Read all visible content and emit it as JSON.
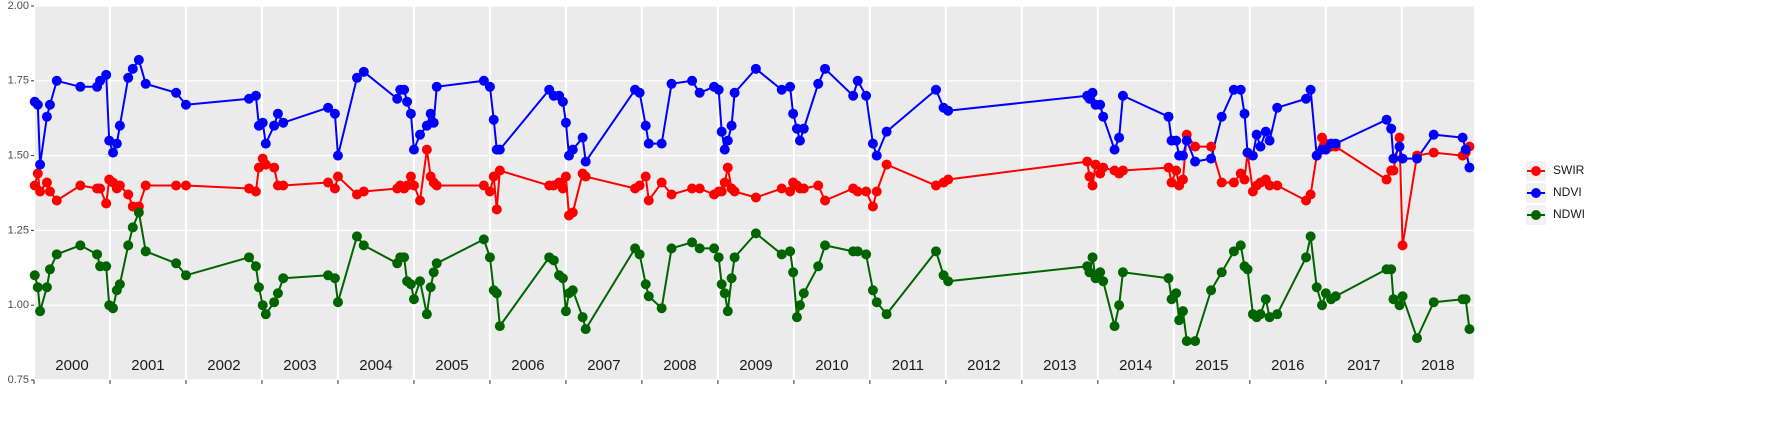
{
  "chart_data": {
    "type": "line",
    "x": [
      2000.01,
      2000.05,
      2000.08,
      2000.17,
      2000.21,
      2000.3,
      2000.61,
      2000.83,
      2000.87,
      2000.95,
      2000.99,
      2001.04,
      2001.09,
      2001.13,
      2001.24,
      2001.3,
      2001.38,
      2001.47,
      2001.87,
      2002.0,
      2002.83,
      2002.92,
      2002.96,
      2003.01,
      2003.05,
      2003.16,
      2003.21,
      2003.28,
      2003.87,
      2003.96,
      2004.0,
      2004.25,
      2004.34,
      2004.78,
      2004.82,
      2004.87,
      2004.91,
      2004.96,
      2005.0,
      2005.08,
      2005.17,
      2005.22,
      2005.26,
      2005.3,
      2005.92,
      2006.0,
      2006.05,
      2006.09,
      2006.13,
      2006.78,
      2006.84,
      2006.91,
      2006.96,
      2007.0,
      2007.04,
      2007.09,
      2007.22,
      2007.26,
      2007.91,
      2007.97,
      2008.05,
      2008.09,
      2008.26,
      2008.39,
      2008.66,
      2008.76,
      2008.95,
      2009.01,
      2009.05,
      2009.09,
      2009.13,
      2009.18,
      2009.22,
      2009.5,
      2009.84,
      2009.95,
      2009.99,
      2010.04,
      2010.08,
      2010.13,
      2010.32,
      2010.41,
      2010.78,
      2010.84,
      2010.95,
      2011.04,
      2011.09,
      2011.22,
      2011.87,
      2011.97,
      2012.03,
      2013.86,
      2013.89,
      2013.93,
      2013.97,
      2014.03,
      2014.07,
      2014.22,
      2014.28,
      2014.33,
      2014.93,
      2014.97,
      2015.03,
      2015.07,
      2015.12,
      2015.17,
      2015.28,
      2015.49,
      2015.63,
      2015.79,
      2015.88,
      2015.93,
      2015.97,
      2016.04,
      2016.09,
      2016.14,
      2016.21,
      2016.26,
      2016.36,
      2016.74,
      2016.8,
      2016.88,
      2016.95,
      2017.0,
      2017.07,
      2017.13,
      2017.8,
      2017.86,
      2017.89,
      2017.97,
      2018.01,
      2018.2,
      2018.42,
      2018.8,
      2018.84,
      2018.89
    ],
    "series": [
      {
        "name": "SWIR",
        "color": "#ff0000",
        "values": [
          1.4,
          1.44,
          1.38,
          1.41,
          1.38,
          1.35,
          1.4,
          1.39,
          1.39,
          1.34,
          1.42,
          1.41,
          1.39,
          1.4,
          1.37,
          1.33,
          1.33,
          1.4,
          1.4,
          1.4,
          1.39,
          1.38,
          1.46,
          1.49,
          1.47,
          1.46,
          1.4,
          1.4,
          1.41,
          1.39,
          1.43,
          1.37,
          1.38,
          1.39,
          1.4,
          1.39,
          1.4,
          1.43,
          1.4,
          1.35,
          1.52,
          1.43,
          1.41,
          1.4,
          1.4,
          1.38,
          1.43,
          1.32,
          1.45,
          1.4,
          1.4,
          1.41,
          1.39,
          1.43,
          1.3,
          1.31,
          1.44,
          1.43,
          1.39,
          1.4,
          1.43,
          1.35,
          1.41,
          1.37,
          1.39,
          1.39,
          1.37,
          1.38,
          1.38,
          1.41,
          1.46,
          1.39,
          1.38,
          1.36,
          1.39,
          1.38,
          1.41,
          1.4,
          1.39,
          1.39,
          1.4,
          1.35,
          1.39,
          1.38,
          1.38,
          1.33,
          1.38,
          1.47,
          1.4,
          1.41,
          1.42,
          1.48,
          1.43,
          1.4,
          1.47,
          1.44,
          1.46,
          1.45,
          1.44,
          1.45,
          1.46,
          1.41,
          1.45,
          1.4,
          1.42,
          1.57,
          1.53,
          1.53,
          1.41,
          1.41,
          1.44,
          1.42,
          1.51,
          1.38,
          1.4,
          1.41,
          1.42,
          1.4,
          1.4,
          1.35,
          1.37,
          1.5,
          1.56,
          1.54,
          1.53,
          1.53,
          1.42,
          1.45,
          1.45,
          1.56,
          1.2,
          1.5,
          1.51,
          1.5,
          1.51,
          1.53
        ]
      },
      {
        "name": "NDVI",
        "color": "#0000ff",
        "values": [
          1.68,
          1.67,
          1.47,
          1.63,
          1.67,
          1.75,
          1.73,
          1.73,
          1.75,
          1.77,
          1.55,
          1.51,
          1.54,
          1.6,
          1.76,
          1.79,
          1.82,
          1.74,
          1.71,
          1.67,
          1.69,
          1.7,
          1.6,
          1.61,
          1.54,
          1.6,
          1.64,
          1.61,
          1.66,
          1.64,
          1.5,
          1.76,
          1.78,
          1.69,
          1.72,
          1.72,
          1.68,
          1.64,
          1.52,
          1.57,
          1.6,
          1.64,
          1.61,
          1.73,
          1.75,
          1.73,
          1.62,
          1.52,
          1.52,
          1.72,
          1.7,
          1.7,
          1.68,
          1.61,
          1.5,
          1.52,
          1.56,
          1.48,
          1.72,
          1.71,
          1.6,
          1.54,
          1.54,
          1.74,
          1.75,
          1.71,
          1.73,
          1.72,
          1.58,
          1.52,
          1.55,
          1.6,
          1.71,
          1.79,
          1.72,
          1.73,
          1.64,
          1.59,
          1.55,
          1.59,
          1.74,
          1.79,
          1.7,
          1.75,
          1.7,
          1.54,
          1.5,
          1.58,
          1.72,
          1.66,
          1.65,
          1.7,
          1.69,
          1.71,
          1.67,
          1.67,
          1.63,
          1.52,
          1.56,
          1.7,
          1.63,
          1.55,
          1.55,
          1.5,
          1.5,
          1.55,
          1.48,
          1.49,
          1.63,
          1.72,
          1.72,
          1.64,
          1.51,
          1.5,
          1.57,
          1.53,
          1.58,
          1.55,
          1.66,
          1.69,
          1.72,
          1.5,
          1.52,
          1.52,
          1.54,
          1.54,
          1.62,
          1.59,
          1.49,
          1.53,
          1.49,
          1.49,
          1.57,
          1.56,
          1.52,
          1.46
        ]
      },
      {
        "name": "NDWI",
        "color": "#006400",
        "values": [
          1.1,
          1.06,
          0.98,
          1.06,
          1.12,
          1.17,
          1.2,
          1.17,
          1.13,
          1.13,
          1.0,
          0.99,
          1.05,
          1.07,
          1.2,
          1.26,
          1.31,
          1.18,
          1.14,
          1.1,
          1.16,
          1.13,
          1.06,
          1.0,
          0.97,
          1.01,
          1.04,
          1.09,
          1.1,
          1.09,
          1.01,
          1.23,
          1.2,
          1.14,
          1.16,
          1.16,
          1.08,
          1.07,
          1.02,
          1.08,
          0.97,
          1.06,
          1.11,
          1.14,
          1.22,
          1.16,
          1.05,
          1.04,
          0.93,
          1.16,
          1.15,
          1.1,
          1.09,
          0.98,
          1.04,
          1.05,
          0.96,
          0.92,
          1.19,
          1.17,
          1.07,
          1.03,
          0.99,
          1.19,
          1.21,
          1.19,
          1.19,
          1.16,
          1.07,
          1.04,
          0.98,
          1.09,
          1.16,
          1.24,
          1.17,
          1.18,
          1.11,
          0.96,
          1.0,
          1.04,
          1.13,
          1.2,
          1.18,
          1.18,
          1.17,
          1.05,
          1.01,
          0.97,
          1.18,
          1.1,
          1.08,
          1.13,
          1.11,
          1.16,
          1.09,
          1.11,
          1.08,
          0.93,
          1.0,
          1.11,
          1.09,
          1.02,
          1.04,
          0.95,
          0.98,
          0.88,
          0.88,
          1.05,
          1.11,
          1.18,
          1.2,
          1.13,
          1.12,
          0.97,
          0.96,
          0.97,
          1.02,
          0.96,
          0.97,
          1.16,
          1.23,
          1.06,
          1.0,
          1.04,
          1.02,
          1.03,
          1.12,
          1.12,
          1.02,
          1.0,
          1.03,
          0.89,
          1.01,
          1.02,
          1.02,
          0.92
        ]
      }
    ],
    "xlim": [
      2000,
      2018.95
    ],
    "xticks": [
      2000,
      2001,
      2002,
      2003,
      2004,
      2005,
      2006,
      2007,
      2008,
      2009,
      2010,
      2011,
      2012,
      2013,
      2014,
      2015,
      2016,
      2017,
      2018
    ],
    "ylim": [
      0.75,
      2.0
    ],
    "yticks": [
      {
        "value": 0.75,
        "label": "0.75"
      },
      {
        "value": 1.0,
        "label": "1.00"
      },
      {
        "value": 1.25,
        "label": "1.25"
      },
      {
        "value": 1.5,
        "label": "1.50"
      },
      {
        "value": 1.75,
        "label": "1.75"
      },
      {
        "value": 2.0,
        "label": "2.00"
      }
    ],
    "grid": true,
    "legend": "right"
  }
}
